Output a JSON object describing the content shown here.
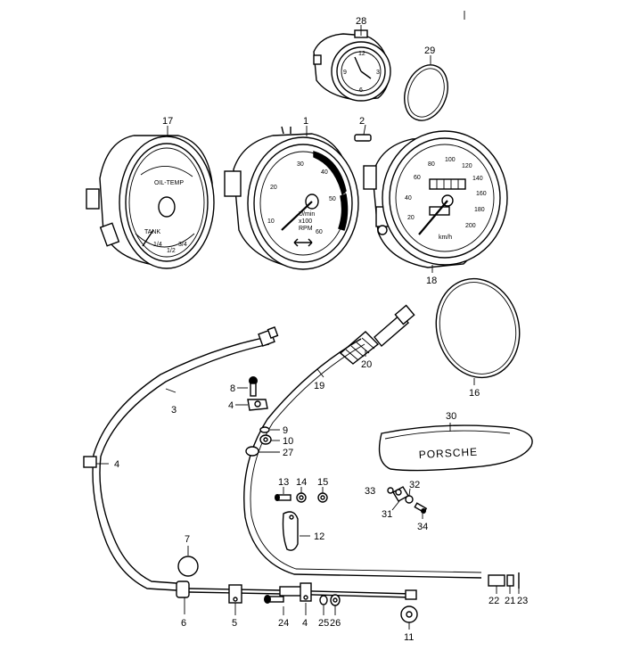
{
  "labels": {
    "p1": "1",
    "p2": "2",
    "p3": "3",
    "p4a": "4",
    "p4b": "4",
    "p4c": "4",
    "p5": "5",
    "p6": "6",
    "p7": "7",
    "p8": "8",
    "p9": "9",
    "p10": "10",
    "p11": "11",
    "p12": "12",
    "p13": "13",
    "p14": "14",
    "p15": "15",
    "p16": "16",
    "p17": "17",
    "p18": "18",
    "p19": "19",
    "p20": "20",
    "p21": "21",
    "p22": "22",
    "p23": "23",
    "p24": "24",
    "p25": "25",
    "p26": "26",
    "p27": "27",
    "p28": "28",
    "p29": "29",
    "p30": "30",
    "p31": "31",
    "p32": "32",
    "p33": "33",
    "p34": "34"
  },
  "tach_numbers": [
    "10",
    "20",
    "30",
    "40",
    "50",
    "60"
  ],
  "tach_text": [
    "U/min",
    "x100",
    "RPM"
  ],
  "speedo_numbers": [
    "20",
    "40",
    "60",
    "80",
    "100",
    "120",
    "140",
    "160",
    "180",
    "200"
  ],
  "speedo_unit": "km/h",
  "combi_text": {
    "oil": "OIL-TEMP",
    "tank": "TANK",
    "f1": "1/4",
    "f2": "1/2",
    "f3": "3/4"
  },
  "clock_numbers": [
    "12",
    "3",
    "6",
    "9"
  ],
  "badge_text": "PORSCHE"
}
